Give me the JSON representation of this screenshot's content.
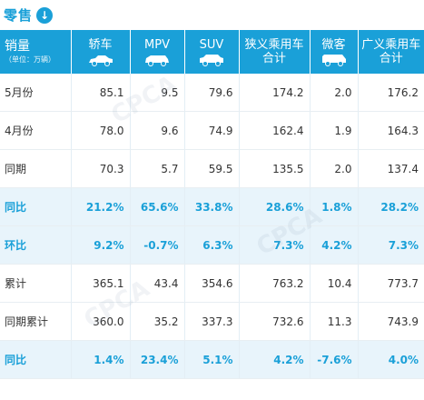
{
  "title": {
    "text": "零售",
    "icon": "circle-down-arrow-icon",
    "accent_color": "#1aa0d8"
  },
  "table": {
    "header": {
      "first_label": "销量",
      "first_unit": "（单位：万辆）",
      "columns": [
        {
          "label": "轿车",
          "icon": "sedan-icon"
        },
        {
          "label": "MPV",
          "icon": "mpv-icon"
        },
        {
          "label": "SUV",
          "icon": "suv-icon"
        },
        {
          "label": "狭义乘用车合计",
          "line1": "狭义乘用车",
          "line2": "合计"
        },
        {
          "label": "微客",
          "icon": "minivan-icon"
        },
        {
          "label": "广义乘用车合计",
          "line1": "广义乘用车",
          "line2": "合计"
        }
      ]
    },
    "rows": [
      {
        "label": "5月份",
        "highlight": false,
        "values": [
          "85.1",
          "9.5",
          "79.6",
          "174.2",
          "2.0",
          "176.2"
        ]
      },
      {
        "label": "4月份",
        "highlight": false,
        "values": [
          "78.0",
          "9.6",
          "74.9",
          "162.4",
          "1.9",
          "164.3"
        ]
      },
      {
        "label": "同期",
        "highlight": false,
        "values": [
          "70.3",
          "5.7",
          "59.5",
          "135.5",
          "2.0",
          "137.4"
        ]
      },
      {
        "label": "同比",
        "highlight": true,
        "values": [
          "21.2%",
          "65.6%",
          "33.8%",
          "28.6%",
          "1.8%",
          "28.2%"
        ]
      },
      {
        "label": "环比",
        "highlight": true,
        "values": [
          "9.2%",
          "-0.7%",
          "6.3%",
          "7.3%",
          "4.2%",
          "7.3%"
        ]
      },
      {
        "label": "累计",
        "highlight": false,
        "values": [
          "365.1",
          "43.4",
          "354.6",
          "763.2",
          "10.4",
          "773.7"
        ]
      },
      {
        "label": "同期累计",
        "highlight": false,
        "values": [
          "360.0",
          "35.2",
          "337.3",
          "732.6",
          "11.3",
          "743.9"
        ]
      },
      {
        "label": "同比",
        "highlight": true,
        "values": [
          "1.4%",
          "23.4%",
          "5.1%",
          "4.2%",
          "-7.6%",
          "4.0%"
        ]
      }
    ]
  },
  "colors": {
    "header_bg": "#1aa0d8",
    "highlight_row_bg": "#e8f4fb",
    "highlight_text": "#1aa0d8",
    "body_text": "#333333"
  }
}
